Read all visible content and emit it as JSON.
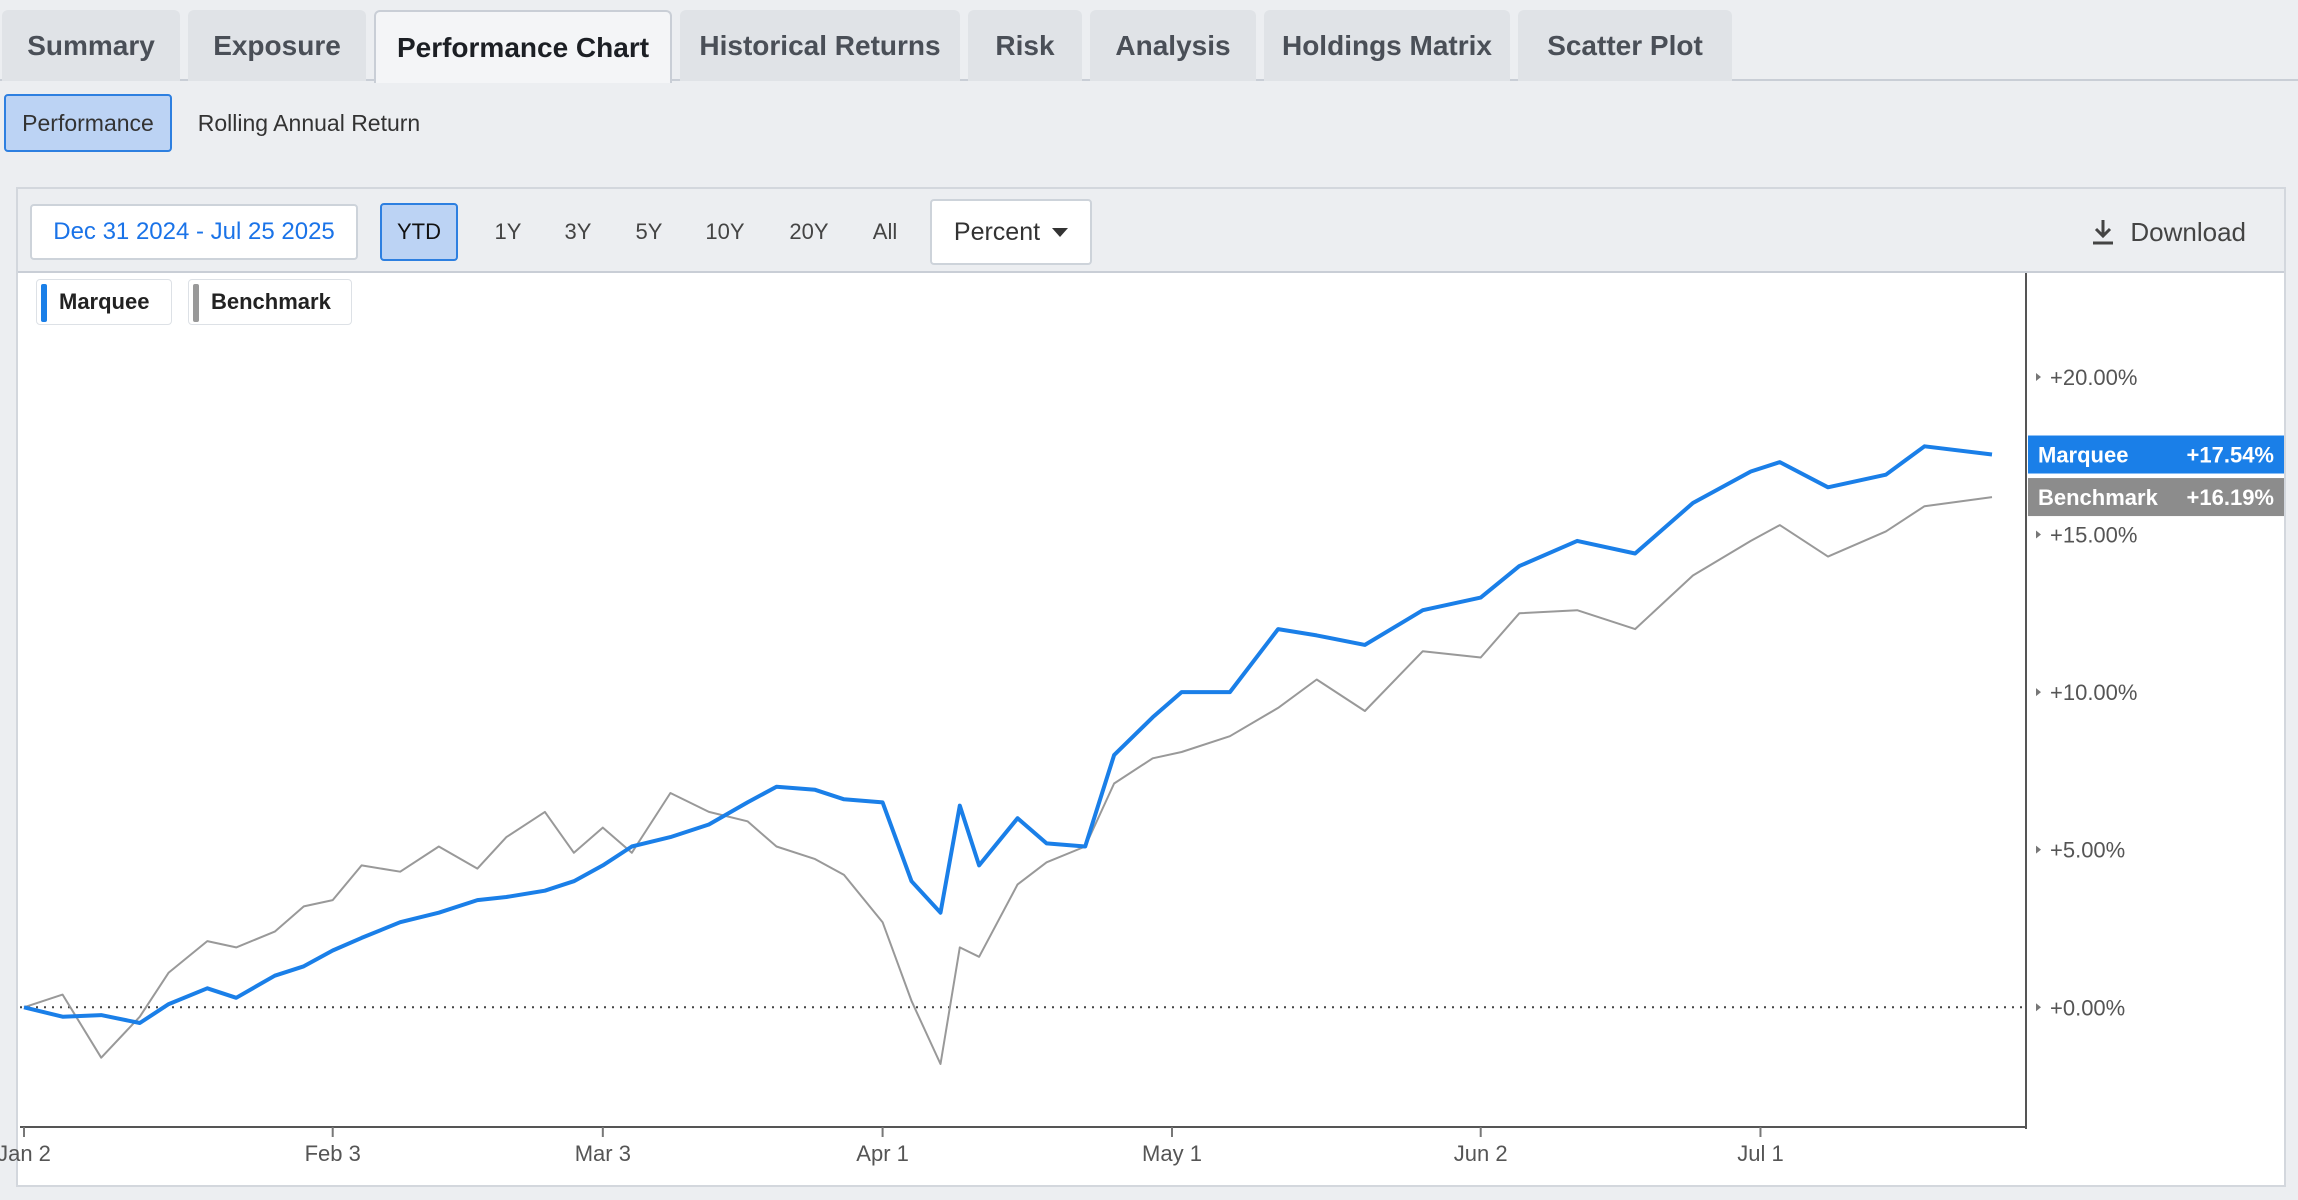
{
  "tabs": [
    {
      "label": "Summary",
      "active": false
    },
    {
      "label": "Exposure",
      "active": false
    },
    {
      "label": "Performance Chart",
      "active": true
    },
    {
      "label": "Historical Returns",
      "active": false
    },
    {
      "label": "Risk",
      "active": false
    },
    {
      "label": "Analysis",
      "active": false
    },
    {
      "label": "Holdings Matrix",
      "active": false
    },
    {
      "label": "Scatter Plot",
      "active": false
    }
  ],
  "subtabs": [
    {
      "label": "Performance",
      "active": true
    },
    {
      "label": "Rolling Annual Return",
      "active": false
    }
  ],
  "toolbar": {
    "date_range": "Dec 31 2024 - Jul 25 2025",
    "periods": [
      "YTD",
      "1Y",
      "3Y",
      "5Y",
      "10Y",
      "20Y",
      "All"
    ],
    "active_period": "YTD",
    "unit": "Percent",
    "download_label": "Download",
    "download_icon": "download-icon"
  },
  "colors": {
    "marquee": "#1a7fe8",
    "benchmark": "#999999",
    "tag_benchmark": "#8c8c8c"
  },
  "chart_data": {
    "type": "line",
    "x_unit": "date (2025)",
    "x_start": "2025-01-02",
    "x_end": "2025-07-25",
    "x_ticks": [
      {
        "label": "Jan 2",
        "date": "2025-01-02"
      },
      {
        "label": "Feb 3",
        "date": "2025-02-03"
      },
      {
        "label": "Mar 3",
        "date": "2025-03-03"
      },
      {
        "label": "Apr 1",
        "date": "2025-04-01"
      },
      {
        "label": "May 1",
        "date": "2025-05-01"
      },
      {
        "label": "Jun 2",
        "date": "2025-06-02"
      },
      {
        "label": "Jul 1",
        "date": "2025-07-01"
      }
    ],
    "y_ticks": [
      "+0.00%",
      "+5.00%",
      "+10.00%",
      "+15.00%",
      "+20.00%"
    ],
    "y_tick_values": [
      0,
      5,
      10,
      15,
      20
    ],
    "ylim": [
      -3.8,
      23.3
    ],
    "baseline": 0,
    "legend": [
      "Marquee",
      "Benchmark"
    ],
    "series": [
      {
        "name": "Marquee",
        "last_label": "+17.54%",
        "values": [
          [
            "2025-01-02",
            0.0
          ],
          [
            "2025-01-06",
            -0.3
          ],
          [
            "2025-01-10",
            -0.25
          ],
          [
            "2025-01-14",
            -0.5
          ],
          [
            "2025-01-17",
            0.1
          ],
          [
            "2025-01-21",
            0.6
          ],
          [
            "2025-01-24",
            0.3
          ],
          [
            "2025-01-28",
            1.0
          ],
          [
            "2025-01-31",
            1.3
          ],
          [
            "2025-02-03",
            1.8
          ],
          [
            "2025-02-06",
            2.2
          ],
          [
            "2025-02-10",
            2.7
          ],
          [
            "2025-02-14",
            3.0
          ],
          [
            "2025-02-18",
            3.4
          ],
          [
            "2025-02-21",
            3.5
          ],
          [
            "2025-02-25",
            3.7
          ],
          [
            "2025-02-28",
            4.0
          ],
          [
            "2025-03-03",
            4.5
          ],
          [
            "2025-03-06",
            5.1
          ],
          [
            "2025-03-10",
            5.4
          ],
          [
            "2025-03-14",
            5.8
          ],
          [
            "2025-03-18",
            6.5
          ],
          [
            "2025-03-21",
            7.0
          ],
          [
            "2025-03-25",
            6.9
          ],
          [
            "2025-03-28",
            6.6
          ],
          [
            "2025-04-01",
            6.5
          ],
          [
            "2025-04-04",
            4.0
          ],
          [
            "2025-04-07",
            3.0
          ],
          [
            "2025-04-09",
            6.4
          ],
          [
            "2025-04-11",
            4.5
          ],
          [
            "2025-04-15",
            6.0
          ],
          [
            "2025-04-18",
            5.2
          ],
          [
            "2025-04-22",
            5.1
          ],
          [
            "2025-04-25",
            8.0
          ],
          [
            "2025-04-29",
            9.2
          ],
          [
            "2025-05-02",
            10.0
          ],
          [
            "2025-05-07",
            10.0
          ],
          [
            "2025-05-12",
            12.0
          ],
          [
            "2025-05-16",
            11.8
          ],
          [
            "2025-05-21",
            11.5
          ],
          [
            "2025-05-27",
            12.6
          ],
          [
            "2025-06-02",
            13.0
          ],
          [
            "2025-06-06",
            14.0
          ],
          [
            "2025-06-12",
            14.8
          ],
          [
            "2025-06-18",
            14.4
          ],
          [
            "2025-06-24",
            16.0
          ],
          [
            "2025-06-30",
            17.0
          ],
          [
            "2025-07-03",
            17.3
          ],
          [
            "2025-07-08",
            16.5
          ],
          [
            "2025-07-14",
            16.9
          ],
          [
            "2025-07-18",
            17.8
          ],
          [
            "2025-07-25",
            17.54
          ]
        ]
      },
      {
        "name": "Benchmark",
        "last_label": "+16.19%",
        "values": [
          [
            "2025-01-02",
            0.0
          ],
          [
            "2025-01-06",
            0.4
          ],
          [
            "2025-01-10",
            -1.6
          ],
          [
            "2025-01-14",
            -0.3
          ],
          [
            "2025-01-17",
            1.1
          ],
          [
            "2025-01-21",
            2.1
          ],
          [
            "2025-01-24",
            1.9
          ],
          [
            "2025-01-28",
            2.4
          ],
          [
            "2025-01-31",
            3.2
          ],
          [
            "2025-02-03",
            3.4
          ],
          [
            "2025-02-06",
            4.5
          ],
          [
            "2025-02-10",
            4.3
          ],
          [
            "2025-02-14",
            5.1
          ],
          [
            "2025-02-18",
            4.4
          ],
          [
            "2025-02-21",
            5.4
          ],
          [
            "2025-02-25",
            6.2
          ],
          [
            "2025-02-28",
            4.9
          ],
          [
            "2025-03-03",
            5.7
          ],
          [
            "2025-03-06",
            4.9
          ],
          [
            "2025-03-10",
            6.8
          ],
          [
            "2025-03-14",
            6.2
          ],
          [
            "2025-03-18",
            5.9
          ],
          [
            "2025-03-21",
            5.1
          ],
          [
            "2025-03-25",
            4.7
          ],
          [
            "2025-03-28",
            4.2
          ],
          [
            "2025-04-01",
            2.7
          ],
          [
            "2025-04-04",
            0.2
          ],
          [
            "2025-04-07",
            -1.8
          ],
          [
            "2025-04-09",
            1.9
          ],
          [
            "2025-04-11",
            1.6
          ],
          [
            "2025-04-15",
            3.9
          ],
          [
            "2025-04-18",
            4.6
          ],
          [
            "2025-04-22",
            5.1
          ],
          [
            "2025-04-25",
            7.1
          ],
          [
            "2025-04-29",
            7.9
          ],
          [
            "2025-05-02",
            8.1
          ],
          [
            "2025-05-07",
            8.6
          ],
          [
            "2025-05-12",
            9.5
          ],
          [
            "2025-05-16",
            10.4
          ],
          [
            "2025-05-21",
            9.4
          ],
          [
            "2025-05-27",
            11.3
          ],
          [
            "2025-06-02",
            11.1
          ],
          [
            "2025-06-06",
            12.5
          ],
          [
            "2025-06-12",
            12.6
          ],
          [
            "2025-06-18",
            12.0
          ],
          [
            "2025-06-24",
            13.7
          ],
          [
            "2025-06-30",
            14.8
          ],
          [
            "2025-07-03",
            15.3
          ],
          [
            "2025-07-08",
            14.3
          ],
          [
            "2025-07-14",
            15.1
          ],
          [
            "2025-07-18",
            15.9
          ],
          [
            "2025-07-25",
            16.19
          ]
        ]
      }
    ]
  }
}
